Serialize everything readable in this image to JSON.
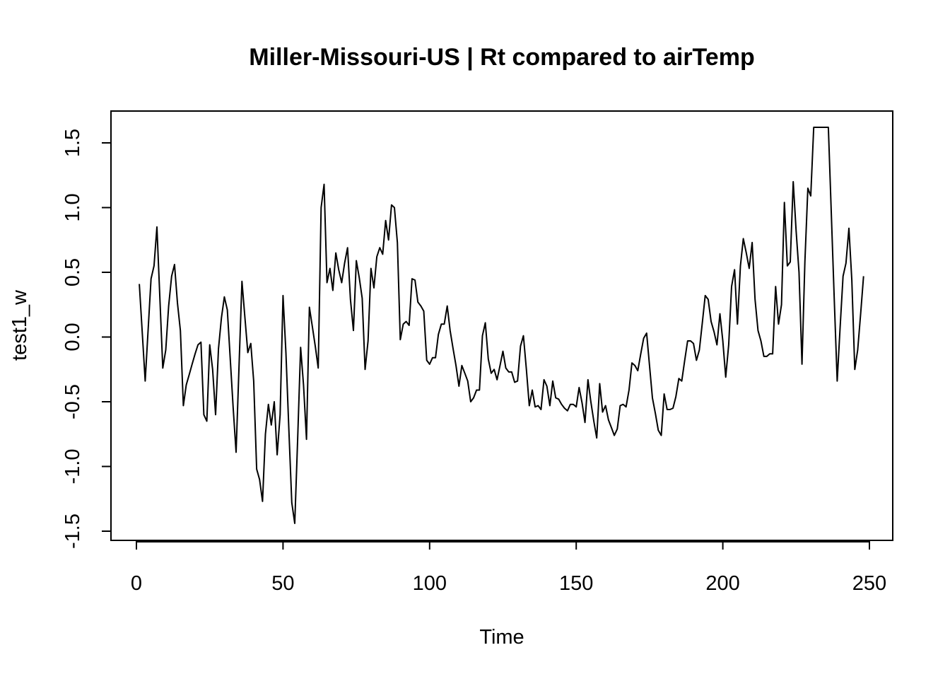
{
  "chart_data": {
    "type": "line",
    "title": "Miller-Missouri-US | Rt compared to airTemp",
    "xlabel": "Time",
    "ylabel": "test1_w",
    "xlim": [
      0,
      250
    ],
    "ylim": [
      -1.5,
      1.5
    ],
    "xticks": [
      0,
      50,
      100,
      150,
      200,
      250
    ],
    "yticks": [
      -1.5,
      -1.0,
      -0.5,
      0.0,
      0.5,
      1.0,
      1.5
    ],
    "xtick_labels": [
      "0",
      "50",
      "100",
      "150",
      "200",
      "250"
    ],
    "ytick_labels": [
      "-1.5",
      "-1.0",
      "-0.5",
      "0.0",
      "0.5",
      "1.0",
      "1.5"
    ],
    "grid": false,
    "legend": "none",
    "colors": {
      "line": "#000000"
    },
    "series": [
      {
        "x": [
          1,
          3,
          5,
          6,
          7,
          9,
          10,
          11,
          12,
          13,
          14,
          15,
          16,
          17,
          18,
          19,
          20,
          21,
          22,
          23,
          24,
          25,
          26,
          27,
          28,
          29,
          30,
          31,
          33,
          34,
          35,
          36,
          37,
          38,
          39,
          40,
          41,
          42,
          43,
          44,
          45,
          46,
          47,
          48,
          49,
          50,
          51,
          52,
          53,
          54,
          55,
          56,
          57,
          58,
          59,
          60,
          61,
          62,
          63,
          64,
          65,
          66,
          67,
          68,
          69,
          70,
          71,
          72,
          73,
          74,
          75,
          76,
          77,
          78,
          79,
          80,
          81,
          82,
          83,
          84,
          85,
          86,
          87,
          88,
          89,
          90,
          91,
          92,
          93,
          94,
          95,
          96,
          97,
          98,
          99,
          100,
          101,
          102,
          103,
          104,
          105,
          106,
          107,
          108,
          109,
          110,
          111,
          112,
          113,
          114,
          115,
          116,
          117,
          118,
          119,
          120,
          121,
          122,
          123,
          124,
          125,
          126,
          127,
          128,
          129,
          130,
          131,
          132,
          133,
          134,
          135,
          136,
          137,
          138,
          139,
          140,
          141,
          142,
          143,
          144,
          145,
          146,
          147,
          148,
          149,
          150,
          151,
          152,
          153,
          154,
          155,
          156,
          157,
          158,
          159,
          160,
          161,
          162,
          163,
          164,
          165,
          166,
          167,
          168,
          169,
          170,
          171,
          172,
          173,
          174,
          175,
          176,
          177,
          178,
          179,
          180,
          181,
          182,
          183,
          184,
          185,
          186,
          187,
          188,
          189,
          190,
          191,
          192,
          193,
          194,
          195,
          196,
          197,
          198,
          199,
          200,
          201,
          202,
          203,
          204,
          205,
          206,
          207,
          208,
          209,
          210,
          211,
          212,
          213,
          214,
          215,
          216,
          217,
          218,
          219,
          220,
          221,
          222,
          223,
          224,
          225,
          226,
          227,
          228,
          229,
          230,
          231,
          232,
          233,
          234,
          235,
          236,
          238,
          239,
          240,
          241,
          242,
          243,
          244,
          245,
          246,
          247,
          248
        ],
        "y": [
          0.41,
          -0.34,
          0.45,
          0.55,
          0.85,
          -0.24,
          -0.1,
          0.24,
          0.47,
          0.56,
          0.26,
          0.05,
          -0.53,
          -0.37,
          -0.29,
          -0.21,
          -0.13,
          -0.06,
          -0.04,
          -0.6,
          -0.65,
          -0.06,
          -0.25,
          -0.6,
          -0.09,
          0.15,
          0.31,
          0.21,
          -0.55,
          -0.89,
          -0.22,
          0.43,
          0.15,
          -0.12,
          -0.05,
          -0.34,
          -1.02,
          -1.1,
          -1.27,
          -0.75,
          -0.52,
          -0.68,
          -0.5,
          -0.91,
          -0.6,
          0.32,
          -0.12,
          -0.72,
          -1.28,
          -1.44,
          -0.79,
          -0.08,
          -0.37,
          -0.79,
          0.23,
          0.08,
          -0.07,
          -0.24,
          1.0,
          1.18,
          0.42,
          0.53,
          0.36,
          0.65,
          0.52,
          0.42,
          0.57,
          0.69,
          0.29,
          0.05,
          0.59,
          0.46,
          0.3,
          -0.25,
          -0.03,
          0.53,
          0.38,
          0.62,
          0.69,
          0.64,
          0.9,
          0.75,
          1.02,
          1.0,
          0.73,
          -0.02,
          0.1,
          0.12,
          0.09,
          0.45,
          0.44,
          0.27,
          0.24,
          0.2,
          -0.18,
          -0.21,
          -0.16,
          -0.16,
          0.02,
          0.1,
          0.1,
          0.24,
          0.05,
          -0.09,
          -0.22,
          -0.38,
          -0.22,
          -0.28,
          -0.34,
          -0.5,
          -0.47,
          -0.41,
          -0.41,
          0.01,
          0.11,
          -0.17,
          -0.28,
          -0.25,
          -0.33,
          -0.22,
          -0.11,
          -0.24,
          -0.27,
          -0.27,
          -0.35,
          -0.34,
          -0.07,
          0.01,
          -0.25,
          -0.53,
          -0.41,
          -0.54,
          -0.53,
          -0.56,
          -0.33,
          -0.38,
          -0.53,
          -0.34,
          -0.47,
          -0.48,
          -0.52,
          -0.55,
          -0.57,
          -0.52,
          -0.52,
          -0.54,
          -0.39,
          -0.51,
          -0.66,
          -0.33,
          -0.5,
          -0.65,
          -0.78,
          -0.36,
          -0.58,
          -0.53,
          -0.64,
          -0.7,
          -0.76,
          -0.71,
          -0.53,
          -0.52,
          -0.54,
          -0.41,
          -0.2,
          -0.22,
          -0.26,
          -0.13,
          -0.01,
          0.03,
          -0.22,
          -0.47,
          -0.59,
          -0.72,
          -0.76,
          -0.44,
          -0.56,
          -0.56,
          -0.55,
          -0.46,
          -0.32,
          -0.34,
          -0.18,
          -0.03,
          -0.03,
          -0.05,
          -0.18,
          -0.1,
          0.11,
          0.32,
          0.29,
          0.12,
          0.04,
          -0.06,
          0.18,
          -0.03,
          -0.31,
          -0.06,
          0.39,
          0.52,
          0.1,
          0.55,
          0.76,
          0.65,
          0.53,
          0.73,
          0.29,
          0.05,
          -0.03,
          -0.15,
          -0.15,
          -0.13,
          -0.13,
          0.39,
          0.1,
          0.25,
          1.04,
          0.55,
          0.58,
          1.2,
          0.82,
          0.5,
          -0.21,
          0.58,
          1.15,
          1.09,
          1.62,
          1.62,
          1.62,
          1.62,
          1.62,
          1.62,
          0.3,
          -0.34,
          0.07,
          0.47,
          0.57,
          0.84,
          0.44,
          -0.25,
          -0.1,
          0.18,
          0.47
        ]
      }
    ]
  }
}
